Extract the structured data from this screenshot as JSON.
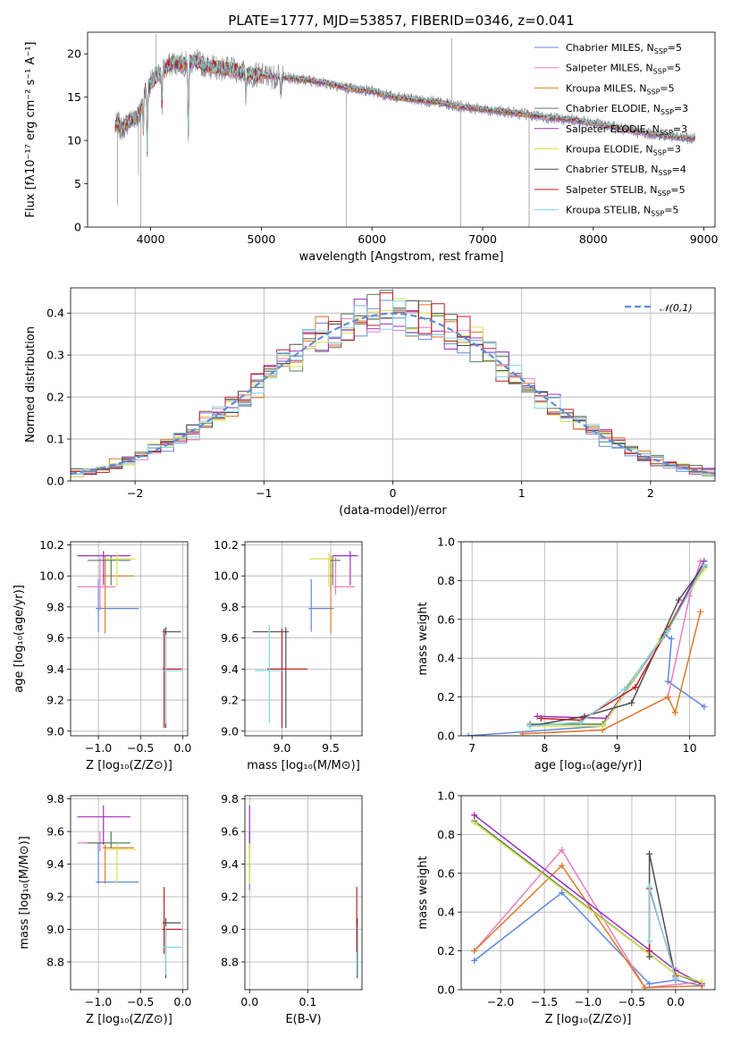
{
  "title": "PLATE=1777, MJD=53857, FIBERID=0346, z=0.041",
  "colors": {
    "Chabrier MILES": "#6089de",
    "Salpeter MILES": "#e481c0",
    "Kroupa MILES": "#de7b29",
    "Chabrier ELODIE": "#5b7d5b",
    "Salpeter ELODIE": "#9b31c1",
    "Kroupa ELODIE": "#d7e24f",
    "Chabrier STELIB": "#4d4d4d",
    "Salpeter STELIB": "#c21d23",
    "Kroupa STELIB": "#85d6e0"
  },
  "chart_data": [
    {
      "type": "line",
      "title": "PLATE=1777, MJD=53857, FIBERID=0346, z=0.041",
      "xlabel": "wavelength [Angstrom, rest frame]",
      "ylabel": "Flux [fλ10⁻¹⁷ erg cm⁻² s⁻¹ A⁻¹]",
      "xlim": [
        3430,
        9100
      ],
      "ylim": [
        0,
        22.5
      ],
      "xticks": [
        4000,
        5000,
        6000,
        7000,
        8000,
        9000
      ],
      "yticks": [
        0,
        5,
        10,
        15,
        20
      ],
      "grid": false,
      "legend_position": "top-right",
      "legend": [
        {
          "text": "Chabrier MILES, N",
          "sub": "SSP",
          "tail": "=5"
        },
        {
          "text": "Salpeter MILES, N",
          "sub": "SSP",
          "tail": "=5"
        },
        {
          "text": "Kroupa MILES, N",
          "sub": "SSP",
          "tail": "=5"
        },
        {
          "text": "Chabrier ELODIE, N",
          "sub": "SSP",
          "tail": "=3"
        },
        {
          "text": "Salpeter ELODIE, N",
          "sub": "SSP",
          "tail": "=3"
        },
        {
          "text": "Kroupa ELODIE, N",
          "sub": "SSP",
          "tail": "=3"
        },
        {
          "text": "Chabrier STELIB, N",
          "sub": "SSP",
          "tail": "=4"
        },
        {
          "text": "Salpeter STELIB, N",
          "sub": "SSP",
          "tail": "=5"
        },
        {
          "text": "Kroupa STELIB, N",
          "sub": "SSP",
          "tail": "=5"
        }
      ],
      "legend_series": [
        "Chabrier MILES",
        "Salpeter MILES",
        "Kroupa MILES",
        "Chabrier ELODIE",
        "Salpeter ELODIE",
        "Kroupa ELODIE",
        "Chabrier STELIB",
        "Salpeter STELIB",
        "Kroupa STELIB"
      ],
      "continuum_x": [
        3680,
        3700,
        3740,
        3800,
        3850,
        3900,
        3940,
        4000,
        4100,
        4200,
        4300,
        4400,
        4500,
        4600,
        4700,
        4800,
        4900,
        5000,
        5200,
        5400,
        5600,
        5800,
        6000,
        6200,
        6400,
        6600,
        6800,
        7000,
        7200,
        7400,
        7600,
        7800,
        8000,
        8200,
        8400,
        8600,
        8800,
        8920
      ],
      "continuum_y": [
        11.5,
        12.0,
        11.3,
        12.2,
        12.6,
        13.0,
        15.5,
        16.6,
        18.0,
        19.0,
        18.8,
        19.2,
        18.6,
        18.4,
        18.2,
        18.0,
        17.6,
        17.5,
        17.3,
        17.0,
        16.6,
        16.0,
        15.7,
        15.0,
        14.7,
        14.4,
        13.9,
        13.6,
        13.3,
        13.0,
        12.6,
        12.4,
        12.0,
        11.5,
        11.0,
        10.6,
        10.3,
        10.2
      ],
      "absorption_lines": [
        [
          3934,
          10.5
        ],
        [
          3969,
          8.2
        ],
        [
          4102,
          13.5
        ],
        [
          4340,
          9.5
        ],
        [
          4861,
          15.0
        ],
        [
          5175,
          15.2
        ]
      ],
      "spikes": [
        [
          3700,
          2.5
        ],
        [
          3890,
          6.0
        ],
        [
          3910,
          0
        ],
        [
          4050,
          22.3
        ],
        [
          5770,
          0
        ],
        [
          6720,
          21.8
        ],
        [
          6800,
          0
        ],
        [
          7420,
          0
        ]
      ]
    },
    {
      "type": "line",
      "xlabel": "(data-model)/error",
      "ylabel": "Normed distribution",
      "xlim": [
        -2.5,
        2.5
      ],
      "ylim": [
        0,
        0.46
      ],
      "xticks": [
        -2,
        -1,
        0,
        1,
        2
      ],
      "yticks": [
        0.0,
        0.1,
        0.2,
        0.3,
        0.4
      ],
      "grid": true,
      "legend_position": "top-right",
      "legend": [
        "𝒩(0,1)"
      ],
      "bin_width": 0.1,
      "bin_start": -2.5
    },
    {
      "type": "scatter",
      "xlabel": "Z [log₁₀(Z/Z⊙)]",
      "ylabel": "age  [log₁₀(age/yr)]",
      "xlim": [
        -1.33,
        0.06
      ],
      "ylim": [
        8.97,
        10.22
      ],
      "xticks": [
        -1.0,
        -0.5,
        0.0
      ],
      "yticks": [
        9.0,
        9.2,
        9.4,
        9.6,
        9.8,
        10.0,
        10.2
      ],
      "grid": true,
      "points": [
        {
          "series": "Chabrier MILES",
          "x": -1.0,
          "y": 9.79,
          "xlo": -1.03,
          "xhi": -0.52,
          "ylo": 9.64,
          "yhi": 9.98
        },
        {
          "series": "Salpeter MILES",
          "x": -0.98,
          "y": 9.93,
          "xlo": -1.25,
          "xhi": -0.8,
          "ylo": 9.78,
          "yhi": 10.12
        },
        {
          "series": "Kroupa MILES",
          "x": -0.92,
          "y": 10.0,
          "xlo": -0.95,
          "xhi": -0.58,
          "ylo": 9.63,
          "yhi": 10.13
        },
        {
          "series": "Chabrier ELODIE",
          "x": -0.85,
          "y": 10.1,
          "xlo": -1.13,
          "xhi": -0.62,
          "ylo": 9.94,
          "yhi": 10.13
        },
        {
          "series": "Salpeter ELODIE",
          "x": -0.94,
          "y": 10.13,
          "xlo": -1.25,
          "xhi": -0.62,
          "ylo": 9.94,
          "yhi": 10.16
        },
        {
          "series": "Kroupa ELODIE",
          "x": -0.78,
          "y": 10.11,
          "xlo": -0.92,
          "xhi": -0.55,
          "ylo": 9.93,
          "yhi": 10.15
        },
        {
          "series": "Chabrier STELIB",
          "x": -0.2,
          "y": 9.64,
          "xlo": -0.24,
          "xhi": -0.02,
          "ylo": 9.02,
          "yhi": 9.67
        },
        {
          "series": "Salpeter STELIB",
          "x": -0.22,
          "y": 9.4,
          "xlo": -0.24,
          "xhi": -0.01,
          "ylo": 9.02,
          "yhi": 9.66
        },
        {
          "series": "Kroupa STELIB",
          "x": -0.2,
          "y": 9.39,
          "xlo": -0.24,
          "xhi": -0.01,
          "ylo": 9.05,
          "yhi": 9.62
        }
      ]
    },
    {
      "type": "scatter",
      "xlabel": "mass [log₁₀(M/M⊙)]",
      "ylabel": "",
      "xlim": [
        8.62,
        9.82
      ],
      "ylim": [
        8.97,
        10.22
      ],
      "xticks": [
        9.0,
        9.5
      ],
      "yticks": [
        9.0,
        9.2,
        9.4,
        9.6,
        9.8,
        10.0,
        10.2
      ],
      "grid": true,
      "points": [
        {
          "series": "Chabrier MILES",
          "x": 9.3,
          "y": 9.79,
          "xlo": 9.27,
          "xhi": 9.53,
          "ylo": 9.64,
          "yhi": 9.98
        },
        {
          "series": "Salpeter MILES",
          "x": 9.55,
          "y": 9.93,
          "xlo": 9.53,
          "xhi": 9.75,
          "ylo": 9.88,
          "yhi": 10.12
        },
        {
          "series": "Kroupa MILES",
          "x": 9.5,
          "y": 10.0,
          "xlo": 9.48,
          "xhi": 9.52,
          "ylo": 9.63,
          "yhi": 10.13
        },
        {
          "series": "Chabrier ELODIE",
          "x": 9.52,
          "y": 10.1,
          "xlo": 9.5,
          "xhi": 9.6,
          "ylo": 9.94,
          "yhi": 10.13
        },
        {
          "series": "Salpeter ELODIE",
          "x": 9.7,
          "y": 10.13,
          "xlo": 9.52,
          "xhi": 9.78,
          "ylo": 9.94,
          "yhi": 10.16
        },
        {
          "series": "Kroupa ELODIE",
          "x": 9.48,
          "y": 10.11,
          "xlo": 9.28,
          "xhi": 9.52,
          "ylo": 9.93,
          "yhi": 10.15
        },
        {
          "series": "Chabrier STELIB",
          "x": 9.04,
          "y": 9.64,
          "xlo": 8.7,
          "xhi": 9.07,
          "ylo": 9.02,
          "yhi": 9.67
        },
        {
          "series": "Salpeter STELIB",
          "x": 9.0,
          "y": 9.4,
          "xlo": 8.85,
          "xhi": 9.26,
          "ylo": 9.02,
          "yhi": 9.66
        },
        {
          "series": "Kroupa STELIB",
          "x": 8.87,
          "y": 9.39,
          "xlo": 8.72,
          "xhi": 9.02,
          "ylo": 9.05,
          "yhi": 9.68
        }
      ]
    },
    {
      "type": "line",
      "xlabel": "age  [log₁₀(age/yr)]",
      "ylabel": "mass weight",
      "xlim": [
        6.85,
        10.35
      ],
      "ylim": [
        0,
        1
      ],
      "xticks": [
        7,
        8,
        9,
        10
      ],
      "yticks": [
        0.0,
        0.2,
        0.4,
        0.6,
        0.8,
        1.0
      ],
      "grid": true,
      "series": [
        {
          "name": "Chabrier MILES",
          "x": [
            6.95,
            8.8,
            9.65,
            9.75,
            9.7,
            10.2
          ],
          "y": [
            0.0,
            0.05,
            0.52,
            0.5,
            0.28,
            0.15
          ]
        },
        {
          "name": "Salpeter MILES",
          "x": [
            7.7,
            8.8,
            9.7,
            10.0,
            10.15
          ],
          "y": [
            0.01,
            0.03,
            0.2,
            0.72,
            0.9
          ]
        },
        {
          "name": "Kroupa MILES",
          "x": [
            7.7,
            8.8,
            9.7,
            9.8,
            10.15
          ],
          "y": [
            0.01,
            0.03,
            0.2,
            0.12,
            0.64
          ]
        },
        {
          "name": "Chabrier ELODIE",
          "x": [
            7.8,
            8.8,
            9.6,
            10.2
          ],
          "y": [
            0.06,
            0.06,
            0.5,
            0.87
          ]
        },
        {
          "name": "Salpeter ELODIE",
          "x": [
            7.9,
            8.85,
            9.65,
            10.2
          ],
          "y": [
            0.1,
            0.09,
            0.52,
            0.9
          ]
        },
        {
          "name": "Kroupa ELODIE",
          "x": [
            7.8,
            8.8,
            9.6,
            10.2
          ],
          "y": [
            0.05,
            0.05,
            0.5,
            0.86
          ]
        },
        {
          "name": "Chabrier STELIB",
          "x": [
            7.8,
            8.55,
            9.2,
            9.85,
            10.2
          ],
          "y": [
            0.05,
            0.1,
            0.17,
            0.7,
            0.88
          ]
        },
        {
          "name": "Salpeter STELIB",
          "x": [
            7.95,
            8.5,
            9.25,
            9.7,
            10.2
          ],
          "y": [
            0.09,
            0.08,
            0.25,
            0.55,
            0.88
          ]
        },
        {
          "name": "Kroupa STELIB",
          "x": [
            7.8,
            8.5,
            9.1,
            9.7,
            10.2
          ],
          "y": [
            0.05,
            0.07,
            0.24,
            0.54,
            0.88
          ]
        }
      ]
    },
    {
      "type": "scatter",
      "xlabel": "Z [log₁₀(Z/Z⊙)]",
      "ylabel": "mass [log₁₀(M/M⊙)]",
      "xlim": [
        -1.33,
        0.06
      ],
      "ylim": [
        8.63,
        9.82
      ],
      "xticks": [
        -1.0,
        -0.5,
        0.0
      ],
      "yticks": [
        8.8,
        9.0,
        9.2,
        9.4,
        9.6,
        9.8
      ],
      "grid": true,
      "points": [
        {
          "series": "Chabrier MILES",
          "x": -1.0,
          "y": 9.29,
          "xlo": -1.03,
          "xhi": -0.52,
          "ylo": 9.28,
          "yhi": 9.53
        },
        {
          "series": "Salpeter MILES",
          "x": -0.98,
          "y": 9.53,
          "xlo": -1.25,
          "xhi": -0.8,
          "ylo": 9.48,
          "yhi": 9.6
        },
        {
          "series": "Kroupa MILES",
          "x": -0.92,
          "y": 9.5,
          "xlo": -0.95,
          "xhi": -0.58,
          "ylo": 9.28,
          "yhi": 9.52
        },
        {
          "series": "Chabrier ELODIE",
          "x": -0.85,
          "y": 9.53,
          "xlo": -1.13,
          "xhi": -0.62,
          "ylo": 9.5,
          "yhi": 9.6
        },
        {
          "series": "Salpeter ELODIE",
          "x": -0.94,
          "y": 9.69,
          "xlo": -1.25,
          "xhi": -0.62,
          "ylo": 9.52,
          "yhi": 9.76
        },
        {
          "series": "Kroupa ELODIE",
          "x": -0.78,
          "y": 9.49,
          "xlo": -0.92,
          "xhi": -0.55,
          "ylo": 9.28,
          "yhi": 9.52
        },
        {
          "series": "Chabrier STELIB",
          "x": -0.2,
          "y": 9.04,
          "xlo": -0.24,
          "xhi": -0.02,
          "ylo": 8.7,
          "yhi": 9.07
        },
        {
          "series": "Salpeter STELIB",
          "x": -0.22,
          "y": 9.0,
          "xlo": -0.24,
          "xhi": -0.01,
          "ylo": 8.85,
          "yhi": 9.26
        },
        {
          "series": "Kroupa STELIB",
          "x": -0.2,
          "y": 8.89,
          "xlo": -0.24,
          "xhi": -0.01,
          "ylo": 8.72,
          "yhi": 9.02
        }
      ]
    },
    {
      "type": "scatter",
      "xlabel": "E(B-V)",
      "ylabel": "",
      "xlim": [
        -0.008,
        0.193
      ],
      "ylim": [
        8.63,
        9.82
      ],
      "xticks": [
        0.0,
        0.1
      ],
      "yticks": [
        8.8,
        9.0,
        9.2,
        9.4,
        9.6,
        9.8
      ],
      "grid": true,
      "points": [
        {
          "series": "Chabrier MILES",
          "x": 0.0,
          "y": 9.3,
          "ylo": 9.24,
          "yhi": 9.53
        },
        {
          "series": "Salpeter MILES",
          "x": 0.0,
          "y": 9.5,
          "ylo": 9.45,
          "yhi": 9.6
        },
        {
          "series": "Kroupa MILES",
          "x": 0.0,
          "y": 9.45,
          "ylo": 9.28,
          "yhi": 9.52
        },
        {
          "series": "Chabrier ELODIE",
          "x": 0.0,
          "y": 9.53,
          "ylo": 9.5,
          "yhi": 9.6
        },
        {
          "series": "Salpeter ELODIE",
          "x": 0.0,
          "y": 9.69,
          "ylo": 9.52,
          "yhi": 9.76
        },
        {
          "series": "Kroupa ELODIE",
          "x": 0.0,
          "y": 9.49,
          "ylo": 9.28,
          "yhi": 9.53
        },
        {
          "series": "Chabrier STELIB",
          "x": 0.185,
          "y": 9.04,
          "ylo": 8.7,
          "yhi": 9.07
        },
        {
          "series": "Salpeter STELIB",
          "x": 0.184,
          "y": 9.0,
          "ylo": 8.86,
          "yhi": 9.26
        },
        {
          "series": "Kroupa STELIB",
          "x": 0.186,
          "y": 8.89,
          "ylo": 8.72,
          "yhi": 9.02
        }
      ]
    },
    {
      "type": "line",
      "xlabel": "Z [log₁₀(Z/Z⊙)]",
      "ylabel": "mass weight",
      "xlim": [
        -2.45,
        0.45
      ],
      "ylim": [
        0,
        1
      ],
      "xticks": [
        -2.0,
        -1.5,
        -1.0,
        -0.5,
        0.0
      ],
      "yticks": [
        0.0,
        0.2,
        0.4,
        0.6,
        0.8,
        1.0
      ],
      "grid": true,
      "series": [
        {
          "name": "Chabrier MILES",
          "x": [
            -2.3,
            -1.3,
            -0.3,
            0.0,
            0.3
          ],
          "y": [
            0.15,
            0.5,
            0.03,
            0.05,
            0.02
          ]
        },
        {
          "name": "Salpeter MILES",
          "x": [
            -2.3,
            -1.3,
            -0.35,
            0.3
          ],
          "y": [
            0.2,
            0.72,
            0.01,
            0.04
          ]
        },
        {
          "name": "Kroupa MILES",
          "x": [
            -2.3,
            -1.3,
            -0.35,
            0.3
          ],
          "y": [
            0.2,
            0.64,
            0.01,
            0.02
          ]
        },
        {
          "name": "Chabrier ELODIE",
          "x": [
            -2.3,
            0.0,
            0.3
          ],
          "y": [
            0.87,
            0.08,
            0.03
          ]
        },
        {
          "name": "Salpeter ELODIE",
          "x": [
            -2.3,
            0.0,
            0.3
          ],
          "y": [
            0.9,
            0.1,
            0.03
          ]
        },
        {
          "name": "Kroupa ELODIE",
          "x": [
            -2.3,
            0.0,
            0.3
          ],
          "y": [
            0.86,
            0.08,
            0.04
          ]
        },
        {
          "name": "Chabrier STELIB",
          "x": [
            -0.3,
            -0.3,
            0.0
          ],
          "y": [
            0.17,
            0.7,
            0.06
          ]
        },
        {
          "name": "Salpeter STELIB",
          "x": [
            -0.3,
            -0.3,
            0.0
          ],
          "y": [
            0.2,
            0.52,
            0.07
          ]
        },
        {
          "name": "Kroupa STELIB",
          "x": [
            -0.3,
            -0.3,
            0.0
          ],
          "y": [
            0.25,
            0.53,
            0.06
          ]
        }
      ]
    }
  ]
}
